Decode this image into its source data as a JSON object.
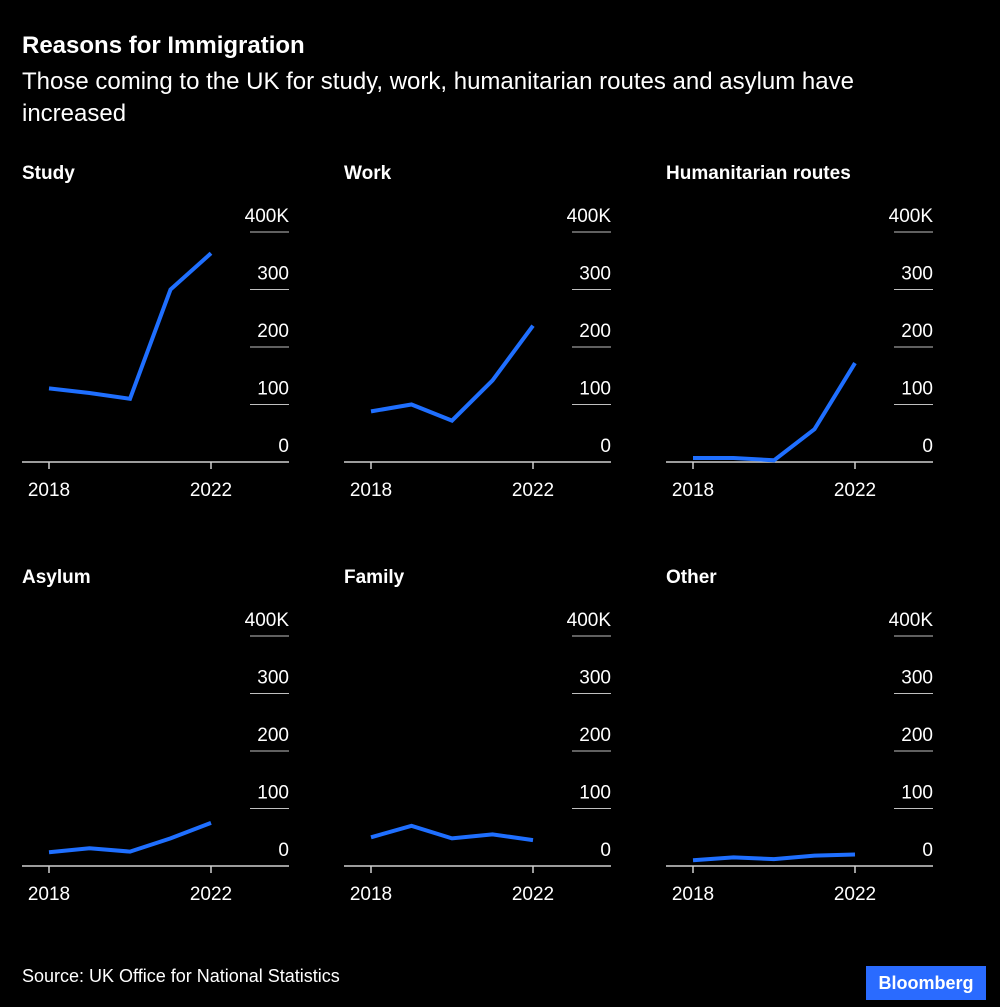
{
  "title": "Reasons for Immigration",
  "subtitle": "Those coming to the UK for study, work, humanitarian routes and asylum have increased",
  "source": "Source: UK Office for National Statistics",
  "brand": "Bloomberg",
  "colors": {
    "background": "#000000",
    "line": "#1f6fff",
    "text": "#ffffff",
    "brand": "#2a6bff"
  },
  "chart_data": [
    {
      "type": "line",
      "title": "Study",
      "x": [
        2018,
        2019,
        2020,
        2021,
        2022
      ],
      "x_tick_labels": [
        "2018",
        "2022"
      ],
      "values": [
        128,
        120,
        110,
        300,
        363
      ],
      "ylim": [
        0,
        400
      ],
      "y_tick_labels": [
        "0",
        "100",
        "200",
        "300",
        "400K"
      ],
      "grid": true,
      "y_axis_side": "right"
    },
    {
      "type": "line",
      "title": "Work",
      "x": [
        2018,
        2019,
        2020,
        2021,
        2022
      ],
      "x_tick_labels": [
        "2018",
        "2022"
      ],
      "values": [
        88,
        100,
        72,
        142,
        237
      ],
      "ylim": [
        0,
        400
      ],
      "y_tick_labels": [
        "0",
        "100",
        "200",
        "300",
        "400K"
      ],
      "grid": true,
      "y_axis_side": "right"
    },
    {
      "type": "line",
      "title": "Humanitarian routes",
      "x": [
        2018,
        2019,
        2020,
        2021,
        2022
      ],
      "x_tick_labels": [
        "2018",
        "2022"
      ],
      "values": [
        7,
        7,
        3,
        57,
        172
      ],
      "ylim": [
        0,
        400
      ],
      "y_tick_labels": [
        "0",
        "100",
        "200",
        "300",
        "400K"
      ],
      "grid": true,
      "y_axis_side": "right"
    },
    {
      "type": "line",
      "title": "Asylum",
      "x": [
        2018,
        2019,
        2020,
        2021,
        2022
      ],
      "x_tick_labels": [
        "2018",
        "2022"
      ],
      "values": [
        24,
        31,
        25,
        48,
        75
      ],
      "ylim": [
        0,
        400
      ],
      "y_tick_labels": [
        "0",
        "100",
        "200",
        "300",
        "400K"
      ],
      "grid": true,
      "y_axis_side": "right"
    },
    {
      "type": "line",
      "title": "Family",
      "x": [
        2018,
        2019,
        2020,
        2021,
        2022
      ],
      "x_tick_labels": [
        "2018",
        "2022"
      ],
      "values": [
        50,
        70,
        48,
        55,
        45
      ],
      "ylim": [
        0,
        400
      ],
      "y_tick_labels": [
        "0",
        "100",
        "200",
        "300",
        "400K"
      ],
      "grid": true,
      "y_axis_side": "right"
    },
    {
      "type": "line",
      "title": "Other",
      "x": [
        2018,
        2019,
        2020,
        2021,
        2022
      ],
      "x_tick_labels": [
        "2018",
        "2022"
      ],
      "values": [
        10,
        15,
        12,
        18,
        20
      ],
      "ylim": [
        0,
        400
      ],
      "y_tick_labels": [
        "0",
        "100",
        "200",
        "300",
        "400K"
      ],
      "grid": true,
      "y_axis_side": "right"
    }
  ]
}
